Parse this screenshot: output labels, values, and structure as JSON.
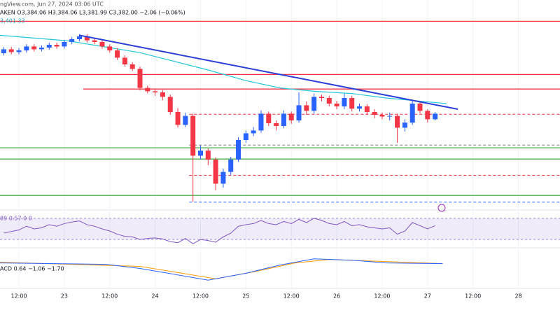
{
  "chart_data": {
    "type": "candlestick",
    "header": [
      "ngView.com, Jun 27, 2024 03:06 UTC",
      "AKEN  O3,384.06  H3,384.06  L3,381.99  C3,382.00  −2.06 (−0.06%)",
      "3,401.33"
    ],
    "xlim": [
      7,
      155
    ],
    "xticks": [
      {
        "value": 12,
        "label": "12:00"
      },
      {
        "value": 24,
        "label": "23"
      },
      {
        "value": 36,
        "label": "12:00"
      },
      {
        "value": 48,
        "label": "24"
      },
      {
        "value": 60,
        "label": "12:00"
      },
      {
        "value": 72,
        "label": "25"
      },
      {
        "value": 84,
        "label": "12:00"
      },
      {
        "value": 96,
        "label": "26"
      },
      {
        "value": 108,
        "label": "12:00"
      },
      {
        "value": 120,
        "label": "27"
      },
      {
        "value": 132,
        "label": "12:00"
      },
      {
        "value": 144,
        "label": "28"
      }
    ],
    "ylim": [
      3210,
      3585
    ],
    "up_color": "#2962ff",
    "down_color": "#f23645",
    "x": [
      8,
      10,
      12,
      14,
      16,
      18,
      20,
      22,
      24,
      26,
      28,
      30,
      32,
      34,
      36,
      38,
      40,
      42,
      44,
      46,
      48,
      50,
      52,
      54,
      56,
      58,
      60,
      62,
      64,
      66,
      68,
      70,
      72,
      74,
      76,
      78,
      80,
      82,
      84,
      86,
      88,
      90,
      92,
      94,
      96,
      98,
      100,
      102,
      104,
      106,
      108,
      110,
      112,
      114,
      116,
      118,
      120,
      122
    ],
    "open": [
      3490,
      3497,
      3492,
      3495,
      3502,
      3497,
      3500,
      3505,
      3502,
      3510,
      3515,
      3520,
      3513,
      3510,
      3502,
      3495,
      3482,
      3470,
      3462,
      3428,
      3422,
      3420,
      3412,
      3385,
      3362,
      3378,
      3307,
      3316,
      3300,
      3257,
      3278,
      3300,
      3335,
      3347,
      3352,
      3382,
      3365,
      3360,
      3382,
      3370,
      3397,
      3387,
      3412,
      3410,
      3400,
      3395,
      3410,
      3391,
      3395,
      3385,
      3380,
      3377,
      3378,
      3357,
      3366,
      3400,
      3387,
      3372
    ],
    "high": [
      3501,
      3501,
      3499,
      3506,
      3506,
      3504,
      3509,
      3509,
      3514,
      3519,
      3524,
      3524,
      3517,
      3514,
      3506,
      3499,
      3486,
      3474,
      3466,
      3432,
      3426,
      3424,
      3416,
      3392,
      3384,
      3382,
      3325,
      3320,
      3304,
      3284,
      3305,
      3340,
      3352,
      3358,
      3388,
      3386,
      3370,
      3388,
      3386,
      3420,
      3404,
      3418,
      3416,
      3414,
      3405,
      3418,
      3414,
      3400,
      3399,
      3390,
      3384,
      3384,
      3382,
      3372,
      3407,
      3404,
      3390,
      3385
    ],
    "low": [
      3486,
      3488,
      3488,
      3491,
      3493,
      3493,
      3496,
      3498,
      3498,
      3506,
      3511,
      3509,
      3506,
      3498,
      3491,
      3478,
      3466,
      3458,
      3424,
      3418,
      3414,
      3406,
      3380,
      3357,
      3358,
      3225,
      3300,
      3290,
      3245,
      3250,
      3272,
      3296,
      3330,
      3342,
      3348,
      3360,
      3352,
      3356,
      3364,
      3366,
      3380,
      3382,
      3404,
      3395,
      3390,
      3390,
      3386,
      3386,
      3380,
      3374,
      3372,
      3370,
      3330,
      3350,
      3362,
      3382,
      3366,
      3370
    ],
    "close": [
      3497,
      3492,
      3495,
      3502,
      3497,
      3500,
      3505,
      3502,
      3510,
      3515,
      3520,
      3513,
      3510,
      3502,
      3495,
      3482,
      3470,
      3462,
      3428,
      3422,
      3420,
      3412,
      3385,
      3362,
      3378,
      3307,
      3316,
      3300,
      3257,
      3278,
      3300,
      3335,
      3347,
      3352,
      3382,
      3365,
      3360,
      3382,
      3370,
      3397,
      3387,
      3412,
      3410,
      3400,
      3395,
      3410,
      3391,
      3395,
      3385,
      3380,
      3377,
      3378,
      3357,
      3366,
      3400,
      3387,
      3372,
      3382
    ],
    "ema": {
      "color": "#26c6da",
      "x": [
        7,
        25,
        44,
        62,
        72,
        81,
        90,
        100,
        109,
        125
      ],
      "values": [
        3522,
        3512,
        3491,
        3460,
        3441,
        3428,
        3422,
        3418,
        3410,
        3400
      ]
    },
    "trendline": {
      "color": "#2b3ed6",
      "x": [
        28,
        128
      ],
      "values": [
        3522,
        3390
      ]
    },
    "levels": [
      {
        "value": 3547,
        "color": "#f23645",
        "x_start": 7,
        "dashed": false
      },
      {
        "value": 3452,
        "color": "#f23645",
        "x_start": 7,
        "dashed": false
      },
      {
        "value": 3426,
        "color": "#f23645",
        "x_start": 29,
        "dashed": false
      },
      {
        "value": 3321,
        "color": "#4caf50",
        "x_start": 7,
        "dashed": false
      },
      {
        "value": 3301,
        "color": "#4caf50",
        "x_start": 7,
        "dashed": false
      },
      {
        "value": 3236,
        "color": "#4caf50",
        "x_start": 7,
        "dashed": false
      },
      {
        "value": 3381,
        "color": "#f23645",
        "x_start": 57,
        "dashed": true
      },
      {
        "value": 3326,
        "color": "#787b86",
        "x_start": 57,
        "dashed": true
      },
      {
        "value": 3272,
        "color": "#f23645",
        "x_start": 57,
        "dashed": true
      },
      {
        "value": 3224,
        "color": "#2962ff",
        "x_start": 57,
        "dashed": true
      }
    ],
    "rsi": {
      "header": "89  0.57  0  0",
      "color": "#7e57c2",
      "ylim": [
        17,
        83
      ],
      "bands": [
        30,
        70
      ],
      "values": [
        42,
        45,
        48,
        55,
        50,
        52,
        58,
        55,
        60,
        63,
        65,
        58,
        55,
        50,
        46,
        40,
        36,
        35,
        30,
        32,
        33,
        31,
        26,
        24,
        32,
        22,
        30,
        28,
        25,
        35,
        42,
        55,
        58,
        60,
        66,
        60,
        58,
        64,
        60,
        68,
        62,
        70,
        66,
        60,
        58,
        64,
        56,
        58,
        54,
        52,
        50,
        52,
        40,
        46,
        62,
        56,
        50,
        56
      ]
    },
    "macd": {
      "header": "ACD  0.64  −1.06  −1.70",
      "ylim": [
        -35,
        20
      ],
      "line": {
        "color": "#2962ff",
        "x": [
          7,
          35,
          44,
          62,
          72,
          81,
          90,
          100,
          109,
          124
        ],
        "values": [
          0,
          -2,
          -8,
          -25,
          -15,
          -3,
          6,
          4,
          0,
          -1
        ]
      },
      "signal": {
        "color": "#ff9800",
        "x": [
          7,
          44,
          64,
          74,
          85,
          94,
          109,
          124
        ],
        "values": [
          1,
          -5,
          -23,
          -13,
          0,
          5,
          2,
          -1
        ]
      }
    }
  }
}
